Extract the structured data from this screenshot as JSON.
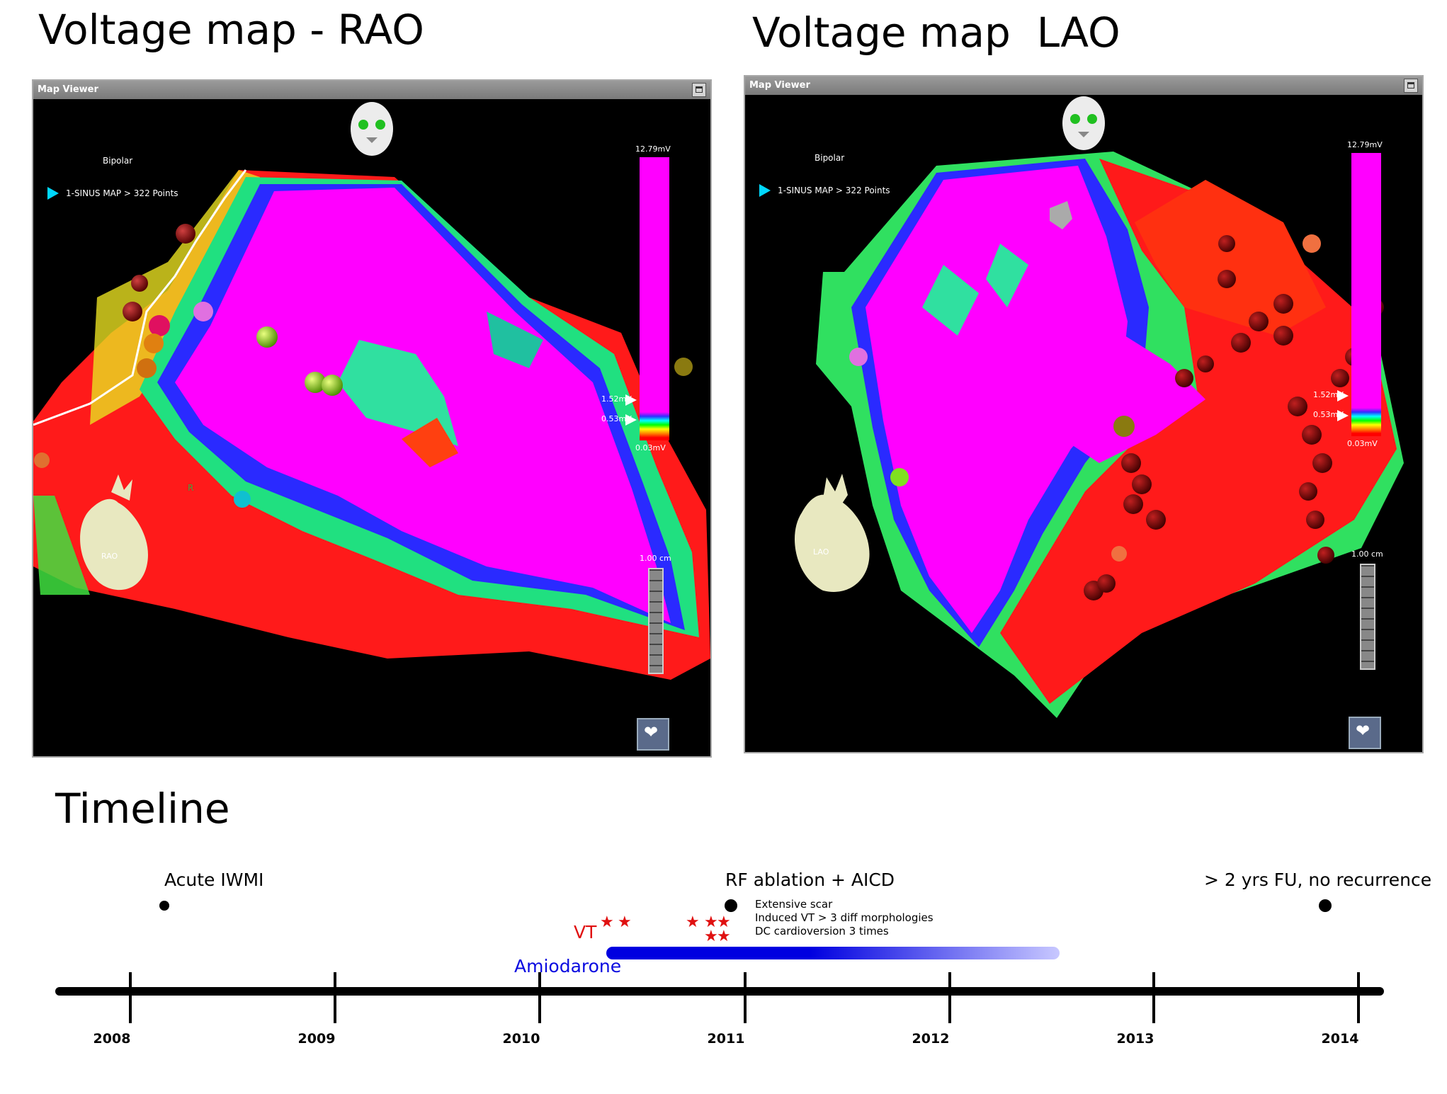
{
  "panel_titles": {
    "rao": "Voltage map - RAO",
    "lao": "Voltage map  LAO",
    "timeline": "Timeline"
  },
  "viewers": {
    "rao": {
      "window_title": "Map Viewer",
      "mode": "Bipolar",
      "map_name": "1-SINUS MAP > 322 Points",
      "scale_max": "12.79mV",
      "threshold_high": "1.52mV",
      "threshold_low": "0.53mV",
      "scale_min": "0.03mV",
      "ruler": "1.00 cm",
      "view_label": "RAO",
      "marker_r": "R"
    },
    "lao": {
      "window_title": "Map Viewer",
      "mode": "Bipolar",
      "map_name": "1-SINUS MAP > 322 Points",
      "scale_max": "12.79mV",
      "threshold_high": "1.52mV",
      "threshold_low": "0.53mV",
      "scale_min": "0.03mV",
      "ruler": "1.00 cm",
      "view_label": "LAO"
    }
  },
  "timeline": {
    "years": [
      "2008",
      "2009",
      "2010",
      "2011",
      "2012",
      "2013",
      "2014"
    ],
    "events": {
      "iwmi": "Acute IWMI",
      "ablation": "RF ablation + AICD",
      "followup": "> 2 yrs FU, no recurrence"
    },
    "ablation_notes": [
      "Extensive scar",
      "Induced VT > 3 diff morphologies",
      "DC cardioversion 3 times"
    ],
    "vt_label": "VT",
    "amiodarone_label": "Amiodarone",
    "colors": {
      "vt": "#e01010",
      "amiodarone": "#0a0ae0",
      "axis": "#000000"
    }
  }
}
